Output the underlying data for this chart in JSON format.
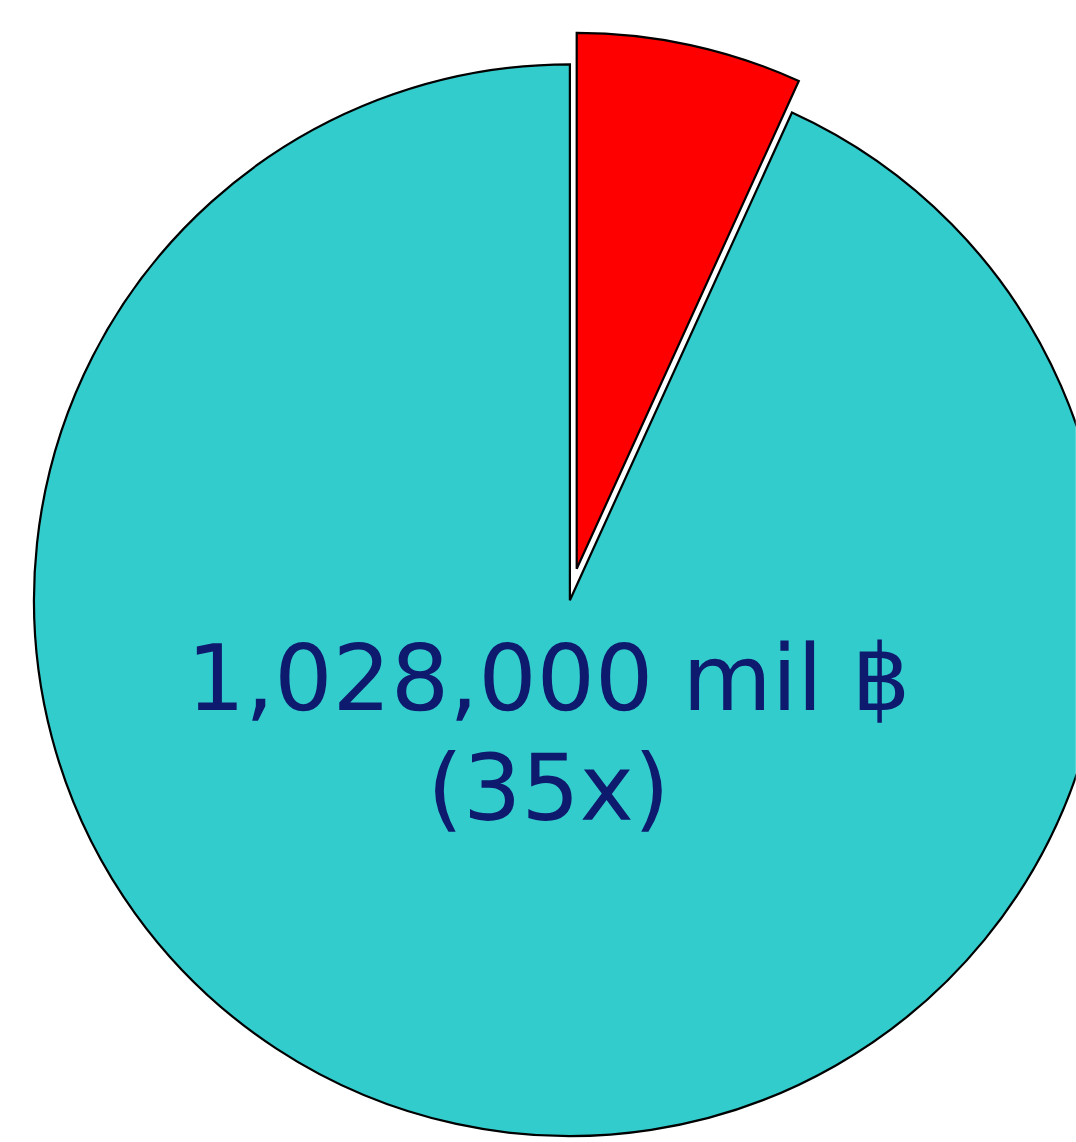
{
  "chart_data": {
    "type": "pie",
    "categories": [
      null,
      null
    ],
    "values": [
      6.8,
      93.2
    ],
    "colors": [
      "#ff0000",
      "#33cccc"
    ],
    "annotations": [
      {
        "text": "1,028,000 mil ฿\n(35x)"
      }
    ]
  }
}
